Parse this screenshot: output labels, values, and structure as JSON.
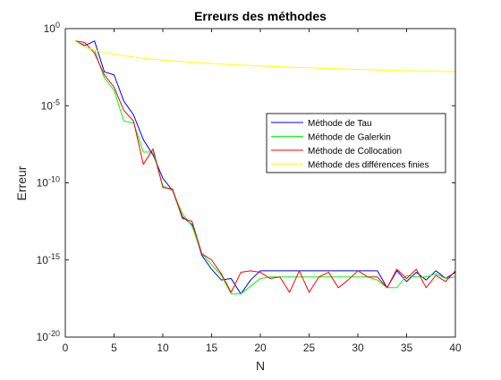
{
  "chart_data": {
    "type": "line",
    "title": "Erreurs des méthodes",
    "xlabel": "N",
    "ylabel": "Erreur",
    "xlim": [
      0,
      40
    ],
    "ylim_log10": [
      -20,
      0
    ],
    "yscale": "log",
    "grid": false,
    "legend_position": "center-right",
    "x_ticks": [
      0,
      5,
      10,
      15,
      20,
      25,
      30,
      35,
      40
    ],
    "y_ticks": [
      {
        "exp": 0,
        "base": "10",
        "sup": "0"
      },
      {
        "exp": -5,
        "base": "10",
        "sup": "-5"
      },
      {
        "exp": -10,
        "base": "10",
        "sup": "-10"
      },
      {
        "exp": -15,
        "base": "10",
        "sup": "-15"
      },
      {
        "exp": -20,
        "base": "10",
        "sup": "-20"
      }
    ],
    "series": [
      {
        "name": "Méthode de Tau",
        "color": "#0000ff",
        "x": [
          1,
          2,
          3,
          4,
          5,
          6,
          7,
          8,
          9,
          10,
          11,
          12,
          13,
          14,
          15,
          16,
          17,
          18,
          19,
          20,
          21,
          22,
          23,
          24,
          25,
          26,
          27,
          28,
          29,
          30,
          31,
          32,
          33,
          34,
          35,
          36,
          37,
          38,
          39,
          40
        ],
        "log10_y": [
          -0.8,
          -1.1,
          -0.8,
          -2.8,
          -3.0,
          -4.7,
          -5.6,
          -7.2,
          -8.2,
          -9.7,
          -10.5,
          -12.2,
          -12.7,
          -14.7,
          -15.6,
          -16.3,
          -16.2,
          -17.2,
          -16.3,
          -15.7,
          -15.7,
          -15.7,
          -15.7,
          -15.7,
          -15.7,
          -15.7,
          -15.7,
          -15.7,
          -15.7,
          -15.7,
          -15.7,
          -15.7,
          -16.8,
          -15.7,
          -16.4,
          -15.8,
          -16.3,
          -15.7,
          -16.2,
          -15.8
        ]
      },
      {
        "name": "Méthode de Galerkin",
        "color": "#00ff00",
        "x": [
          1,
          2,
          3,
          4,
          5,
          6,
          7,
          8,
          9,
          10,
          11,
          12,
          13,
          14,
          15,
          16,
          17,
          18,
          19,
          20,
          21,
          22,
          23,
          24,
          25,
          26,
          27,
          28,
          29,
          30,
          31,
          32,
          33,
          34,
          35,
          36,
          37,
          38,
          39,
          40
        ],
        "log10_y": [
          -0.8,
          -1.2,
          -1.4,
          -3.2,
          -4.0,
          -6.0,
          -6.1,
          -8.0,
          -8.0,
          -10.2,
          -10.5,
          -12.0,
          -12.8,
          -14.6,
          -15.3,
          -16.0,
          -17.2,
          -17.2,
          -16.7,
          -16.2,
          -16.1,
          -16.1,
          -16.1,
          -16.1,
          -16.1,
          -16.1,
          -16.1,
          -16.1,
          -16.1,
          -16.1,
          -16.1,
          -16.3,
          -16.8,
          -16.8,
          -16.0,
          -16.1,
          -16.1,
          -15.9,
          -16.2,
          -16.1
        ]
      },
      {
        "name": "Méthode de Collocation",
        "color": "#ff0000",
        "x": [
          1,
          2,
          3,
          4,
          5,
          6,
          7,
          8,
          9,
          10,
          11,
          12,
          13,
          14,
          15,
          16,
          17,
          18,
          19,
          20,
          21,
          22,
          23,
          24,
          25,
          26,
          27,
          28,
          29,
          30,
          31,
          32,
          33,
          34,
          35,
          36,
          37,
          38,
          39,
          40
        ],
        "log10_y": [
          -0.8,
          -0.9,
          -1.6,
          -3.0,
          -3.8,
          -5.3,
          -6.0,
          -8.8,
          -7.8,
          -10.3,
          -10.4,
          -12.3,
          -12.5,
          -14.6,
          -15.0,
          -15.9,
          -17.1,
          -15.8,
          -15.7,
          -15.8,
          -16.2,
          -16.1,
          -17.1,
          -15.7,
          -17.1,
          -16.1,
          -15.8,
          -16.8,
          -16.3,
          -15.7,
          -16.1,
          -16.1,
          -16.8,
          -15.6,
          -16.2,
          -15.6,
          -16.8,
          -16.0,
          -16.4,
          -15.7
        ]
      },
      {
        "name": "Méthode des différences finies",
        "color": "#ffff00",
        "x": [
          1,
          2,
          3,
          4,
          5,
          6,
          7,
          8,
          9,
          10,
          11,
          12,
          13,
          14,
          15,
          16,
          17,
          18,
          19,
          20,
          21,
          22,
          23,
          24,
          25,
          26,
          27,
          28,
          29,
          30,
          31,
          32,
          33,
          34,
          35,
          36,
          37,
          38,
          39,
          40
        ],
        "log10_y": [
          -0.8,
          -1.2,
          -1.4,
          -1.55,
          -1.65,
          -1.75,
          -1.85,
          -1.92,
          -1.98,
          -2.04,
          -2.09,
          -2.14,
          -2.18,
          -2.22,
          -2.26,
          -2.3,
          -2.33,
          -2.36,
          -2.39,
          -2.42,
          -2.45,
          -2.47,
          -2.5,
          -2.52,
          -2.54,
          -2.56,
          -2.58,
          -2.6,
          -2.62,
          -2.64,
          -2.66,
          -2.68,
          -2.7,
          -2.71,
          -2.73,
          -2.74,
          -2.76,
          -2.77,
          -2.78,
          -2.79
        ]
      }
    ]
  }
}
